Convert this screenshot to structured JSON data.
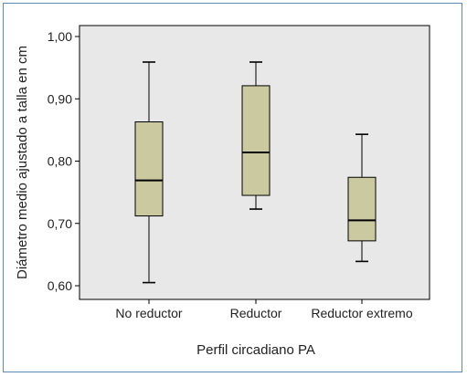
{
  "chart_data": {
    "type": "boxplot",
    "xlabel": "Perfil circadiano PA",
    "ylabel": "Diámetro medio ajustado a talla en cm",
    "ylim": [
      0.6,
      1.0
    ],
    "yticks": [
      "0,60",
      "0,70",
      "0,80",
      "0,90",
      "1,00"
    ],
    "yticks_values": [
      0.6,
      0.7,
      0.8,
      0.9,
      1.0
    ],
    "categories": [
      "No reductor",
      "Reductor",
      "Reductor extremo"
    ],
    "boxes": [
      {
        "category": "No reductor",
        "min": 0.605,
        "q1": 0.712,
        "median": 0.769,
        "q3": 0.863,
        "max": 0.959
      },
      {
        "category": "Reductor",
        "min": 0.723,
        "q1": 0.745,
        "median": 0.814,
        "q3": 0.921,
        "max": 0.959
      },
      {
        "category": "Reductor extremo",
        "min": 0.639,
        "q1": 0.672,
        "median": 0.705,
        "q3": 0.774,
        "max": 0.843
      }
    ],
    "colors": {
      "box_fill": "#cbc99f",
      "plot_bg": "#e8e8e8",
      "frame": "#5b8bb5",
      "stroke": "#000000"
    },
    "grid": false,
    "legend": "none"
  }
}
